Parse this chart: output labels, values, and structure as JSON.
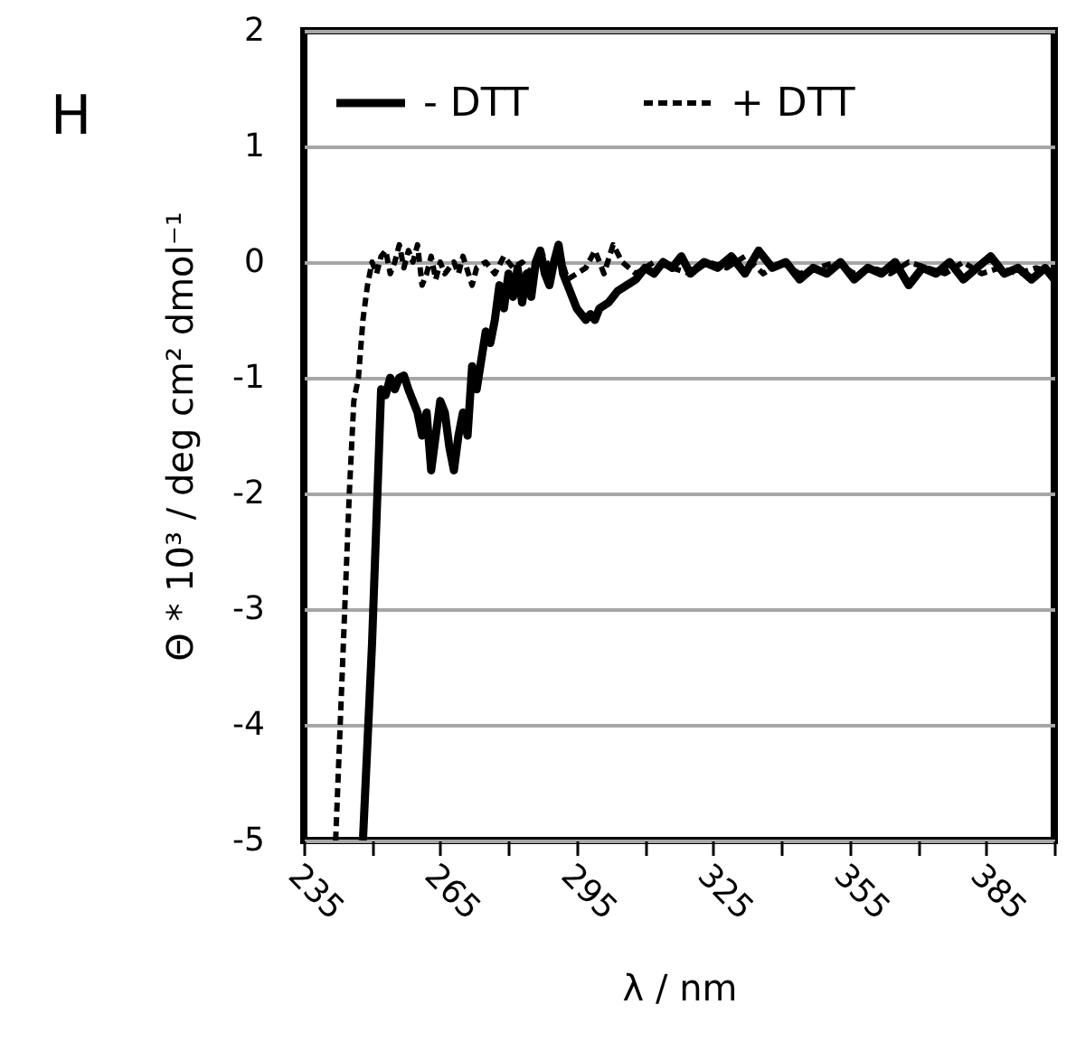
{
  "chart_data": {
    "type": "line",
    "ylabel": "Θ * 10³ / deg cm² dmol⁻¹",
    "xlabel": "λ / nm",
    "annotations": [
      "H"
    ],
    "xlim": [
      235,
      400
    ],
    "xticks": [
      235,
      {
        "value": 250,
        "label": null
      },
      265,
      {
        "value": 280,
        "label": null
      },
      295,
      {
        "value": 310,
        "label": null
      },
      325,
      {
        "value": 340,
        "label": null
      },
      355,
      {
        "value": 370,
        "label": null
      },
      385,
      {
        "value": 400,
        "label": null
      }
    ],
    "ylim": [
      -5,
      2
    ],
    "yticks": [
      -5,
      -4,
      -3,
      -2,
      -1,
      0,
      1,
      2
    ],
    "grid": "y",
    "legend": "top left",
    "series": [
      {
        "name": "-  DTT",
        "color": "#000000",
        "line_style": "solid",
        "x": [
          248,
          250,
          251,
          252,
          253,
          254,
          255,
          256,
          257,
          258,
          259,
          260,
          261,
          262,
          263,
          264,
          265,
          266,
          267,
          268,
          269,
          270,
          271,
          272,
          273,
          274,
          275,
          276,
          277,
          278,
          279,
          280,
          281,
          282,
          283,
          284,
          285,
          286,
          287,
          288,
          289,
          290,
          291,
          292,
          293,
          294,
          295,
          296,
          297,
          298,
          299,
          300,
          302,
          304,
          306,
          308,
          310,
          312,
          314,
          316,
          318,
          320,
          323,
          326,
          329,
          332,
          335,
          338,
          341,
          344,
          347,
          350,
          353,
          356,
          359,
          362,
          365,
          368,
          371,
          374,
          377,
          380,
          383,
          386,
          389,
          392,
          395,
          398,
          400
        ],
        "values": [
          -5,
          -3.3,
          -2.2,
          -1.1,
          -1.15,
          -1.0,
          -1.1,
          -1.0,
          -0.98,
          -1.1,
          -1.2,
          -1.3,
          -1.5,
          -1.3,
          -1.8,
          -1.5,
          -1.2,
          -1.3,
          -1.6,
          -1.8,
          -1.5,
          -1.3,
          -1.5,
          -0.9,
          -1.1,
          -0.85,
          -0.6,
          -0.7,
          -0.5,
          -0.2,
          -0.4,
          -0.1,
          -0.3,
          -0.05,
          -0.35,
          -0.1,
          -0.3,
          0.0,
          0.1,
          -0.1,
          -0.2,
          0.0,
          0.15,
          -0.1,
          -0.2,
          -0.3,
          -0.4,
          -0.45,
          -0.5,
          -0.45,
          -0.5,
          -0.4,
          -0.35,
          -0.25,
          -0.2,
          -0.15,
          -0.05,
          -0.1,
          0.0,
          -0.05,
          0.05,
          -0.1,
          0.0,
          -0.05,
          0.05,
          -0.1,
          0.1,
          -0.05,
          0.0,
          -0.15,
          -0.05,
          -0.1,
          0.0,
          -0.15,
          -0.05,
          -0.1,
          0.0,
          -0.2,
          -0.05,
          -0.1,
          0.0,
          -0.15,
          -0.05,
          0.05,
          -0.1,
          -0.05,
          -0.15,
          -0.05,
          -0.15
        ]
      },
      {
        "name": "+ DTT",
        "color": "#000000",
        "line_style": "dashed",
        "x": [
          242,
          243,
          244,
          245,
          246,
          247,
          248,
          249,
          250,
          251,
          252,
          253,
          254,
          255,
          256,
          257,
          258,
          259,
          260,
          261,
          262,
          263,
          264,
          265,
          266,
          267,
          268,
          269,
          270,
          272,
          273,
          275,
          277,
          279,
          281,
          283,
          285,
          287,
          289,
          291,
          293,
          295,
          297,
          299,
          301,
          303,
          305,
          308,
          312,
          316,
          320,
          324,
          328,
          332,
          336,
          340,
          344,
          348,
          352,
          356,
          360,
          364,
          368,
          372,
          376,
          380,
          384,
          388,
          392,
          396,
          400
        ],
        "values": [
          -5,
          -4,
          -3,
          -2,
          -1.2,
          -1.0,
          -0.5,
          -0.2,
          0.0,
          -0.1,
          0.05,
          0.1,
          -0.1,
          0.0,
          0.15,
          -0.05,
          0.1,
          0.0,
          0.15,
          -0.2,
          -0.1,
          0.05,
          -0.15,
          0.0,
          -0.1,
          -0.05,
          0.0,
          -0.1,
          0.05,
          -0.2,
          -0.05,
          0.0,
          -0.1,
          0.05,
          -0.05,
          0.0,
          -0.1,
          0.1,
          -0.05,
          0.1,
          -0.15,
          -0.1,
          -0.05,
          0.1,
          -0.1,
          0.15,
          0.0,
          -0.1,
          0.0,
          -0.05,
          -0.1,
          0.0,
          -0.05,
          0.05,
          -0.1,
          0.0,
          -0.1,
          -0.05,
          0.0,
          -0.1,
          -0.05,
          -0.1,
          0.0,
          -0.05,
          -0.1,
          0.0,
          -0.1,
          -0.05,
          -0.1,
          -0.05,
          -0.1
        ]
      }
    ]
  }
}
